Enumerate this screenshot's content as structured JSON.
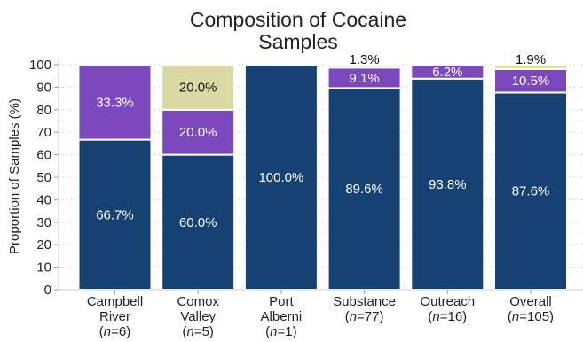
{
  "chart_data": {
    "type": "bar",
    "stacked": true,
    "title_lines": [
      "Composition of Cocaine",
      "Samples"
    ],
    "ylabel": "Proportion of Samples (%)",
    "ylim": [
      0,
      100
    ],
    "yticks": [
      0,
      10,
      20,
      30,
      40,
      50,
      60,
      70,
      80,
      90,
      100
    ],
    "grid": "horizontal dotted",
    "categories": [
      {
        "lines": [
          "Campbell",
          "River"
        ],
        "n_prefix": "(",
        "n_var": "n",
        "n_value": "=6)"
      },
      {
        "lines": [
          "Comox",
          "Valley"
        ],
        "n_prefix": "(",
        "n_var": "n",
        "n_value": "=5)"
      },
      {
        "lines": [
          "Port",
          "Alberni"
        ],
        "n_prefix": "(",
        "n_var": "n",
        "n_value": "=1)"
      },
      {
        "lines": [
          "Substance"
        ],
        "n_prefix": "(",
        "n_var": "n",
        "n_value": "=77)"
      },
      {
        "lines": [
          "Outreach"
        ],
        "n_prefix": "(",
        "n_var": "n",
        "n_value": "=16)"
      },
      {
        "lines": [
          "Overall"
        ],
        "n_prefix": "(",
        "n_var": "n",
        "n_value": "=105)"
      }
    ],
    "series": [
      {
        "color": "#164273",
        "label_color": "#ffffff",
        "values": [
          66.7,
          60.0,
          100.0,
          89.6,
          93.8,
          87.6
        ],
        "labels": [
          "66.7%",
          "60.0%",
          "100.0%",
          "89.6%",
          "93.8%",
          "87.6%"
        ]
      },
      {
        "color": "#7b49bd",
        "label_color": "#ffffff",
        "values": [
          33.3,
          20.0,
          0,
          9.1,
          6.2,
          10.5
        ],
        "labels": [
          "33.3%",
          "20.0%",
          "",
          "9.1%",
          "6.2%",
          "10.5%"
        ]
      },
      {
        "color": "#dad9a4",
        "label_color": "#111111",
        "values": [
          0,
          20.0,
          0,
          1.3,
          0,
          1.9
        ],
        "labels": [
          "",
          "20.0%",
          "",
          "1.3%",
          "",
          "1.9%"
        ]
      }
    ]
  }
}
